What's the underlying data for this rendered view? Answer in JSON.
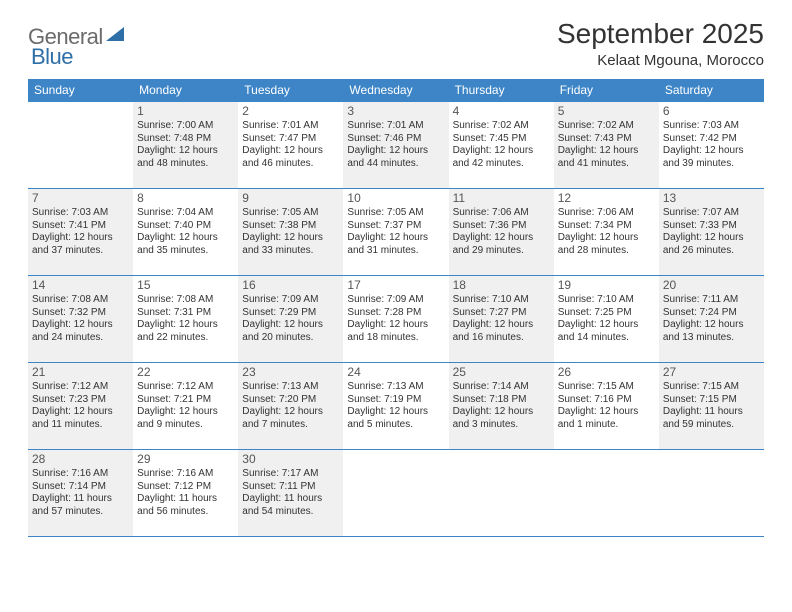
{
  "logo": {
    "text1": "General",
    "text2": "Blue"
  },
  "title": "September 2025",
  "subtitle": "Kelaat Mgouna, Morocco",
  "colors": {
    "header_bg": "#3d85c6",
    "header_fg": "#ffffff",
    "shaded_bg": "#f0f0f0",
    "page_bg": "#ffffff",
    "text": "#333333",
    "daynum": "#555555",
    "rule": "#3d85c6",
    "logo_gray": "#6b6b6b",
    "logo_blue": "#2f6fa8"
  },
  "day_headers": [
    "Sunday",
    "Monday",
    "Tuesday",
    "Wednesday",
    "Thursday",
    "Friday",
    "Saturday"
  ],
  "layout": {
    "columns": 7,
    "rows": 5,
    "row_pattern": "week-rows separated by header-colored rule; cells alternate white/shaded per week row start"
  },
  "weeks": [
    [
      {
        "day": "",
        "shaded": false,
        "sunrise": "",
        "sunset": "",
        "daylight1": "",
        "daylight2": ""
      },
      {
        "day": "1",
        "shaded": true,
        "sunrise": "Sunrise: 7:00 AM",
        "sunset": "Sunset: 7:48 PM",
        "daylight1": "Daylight: 12 hours",
        "daylight2": "and 48 minutes."
      },
      {
        "day": "2",
        "shaded": false,
        "sunrise": "Sunrise: 7:01 AM",
        "sunset": "Sunset: 7:47 PM",
        "daylight1": "Daylight: 12 hours",
        "daylight2": "and 46 minutes."
      },
      {
        "day": "3",
        "shaded": true,
        "sunrise": "Sunrise: 7:01 AM",
        "sunset": "Sunset: 7:46 PM",
        "daylight1": "Daylight: 12 hours",
        "daylight2": "and 44 minutes."
      },
      {
        "day": "4",
        "shaded": false,
        "sunrise": "Sunrise: 7:02 AM",
        "sunset": "Sunset: 7:45 PM",
        "daylight1": "Daylight: 12 hours",
        "daylight2": "and 42 minutes."
      },
      {
        "day": "5",
        "shaded": true,
        "sunrise": "Sunrise: 7:02 AM",
        "sunset": "Sunset: 7:43 PM",
        "daylight1": "Daylight: 12 hours",
        "daylight2": "and 41 minutes."
      },
      {
        "day": "6",
        "shaded": false,
        "sunrise": "Sunrise: 7:03 AM",
        "sunset": "Sunset: 7:42 PM",
        "daylight1": "Daylight: 12 hours",
        "daylight2": "and 39 minutes."
      }
    ],
    [
      {
        "day": "7",
        "shaded": true,
        "sunrise": "Sunrise: 7:03 AM",
        "sunset": "Sunset: 7:41 PM",
        "daylight1": "Daylight: 12 hours",
        "daylight2": "and 37 minutes."
      },
      {
        "day": "8",
        "shaded": false,
        "sunrise": "Sunrise: 7:04 AM",
        "sunset": "Sunset: 7:40 PM",
        "daylight1": "Daylight: 12 hours",
        "daylight2": "and 35 minutes."
      },
      {
        "day": "9",
        "shaded": true,
        "sunrise": "Sunrise: 7:05 AM",
        "sunset": "Sunset: 7:38 PM",
        "daylight1": "Daylight: 12 hours",
        "daylight2": "and 33 minutes."
      },
      {
        "day": "10",
        "shaded": false,
        "sunrise": "Sunrise: 7:05 AM",
        "sunset": "Sunset: 7:37 PM",
        "daylight1": "Daylight: 12 hours",
        "daylight2": "and 31 minutes."
      },
      {
        "day": "11",
        "shaded": true,
        "sunrise": "Sunrise: 7:06 AM",
        "sunset": "Sunset: 7:36 PM",
        "daylight1": "Daylight: 12 hours",
        "daylight2": "and 29 minutes."
      },
      {
        "day": "12",
        "shaded": false,
        "sunrise": "Sunrise: 7:06 AM",
        "sunset": "Sunset: 7:34 PM",
        "daylight1": "Daylight: 12 hours",
        "daylight2": "and 28 minutes."
      },
      {
        "day": "13",
        "shaded": true,
        "sunrise": "Sunrise: 7:07 AM",
        "sunset": "Sunset: 7:33 PM",
        "daylight1": "Daylight: 12 hours",
        "daylight2": "and 26 minutes."
      }
    ],
    [
      {
        "day": "14",
        "shaded": true,
        "sunrise": "Sunrise: 7:08 AM",
        "sunset": "Sunset: 7:32 PM",
        "daylight1": "Daylight: 12 hours",
        "daylight2": "and 24 minutes."
      },
      {
        "day": "15",
        "shaded": false,
        "sunrise": "Sunrise: 7:08 AM",
        "sunset": "Sunset: 7:31 PM",
        "daylight1": "Daylight: 12 hours",
        "daylight2": "and 22 minutes."
      },
      {
        "day": "16",
        "shaded": true,
        "sunrise": "Sunrise: 7:09 AM",
        "sunset": "Sunset: 7:29 PM",
        "daylight1": "Daylight: 12 hours",
        "daylight2": "and 20 minutes."
      },
      {
        "day": "17",
        "shaded": false,
        "sunrise": "Sunrise: 7:09 AM",
        "sunset": "Sunset: 7:28 PM",
        "daylight1": "Daylight: 12 hours",
        "daylight2": "and 18 minutes."
      },
      {
        "day": "18",
        "shaded": true,
        "sunrise": "Sunrise: 7:10 AM",
        "sunset": "Sunset: 7:27 PM",
        "daylight1": "Daylight: 12 hours",
        "daylight2": "and 16 minutes."
      },
      {
        "day": "19",
        "shaded": false,
        "sunrise": "Sunrise: 7:10 AM",
        "sunset": "Sunset: 7:25 PM",
        "daylight1": "Daylight: 12 hours",
        "daylight2": "and 14 minutes."
      },
      {
        "day": "20",
        "shaded": true,
        "sunrise": "Sunrise: 7:11 AM",
        "sunset": "Sunset: 7:24 PM",
        "daylight1": "Daylight: 12 hours",
        "daylight2": "and 13 minutes."
      }
    ],
    [
      {
        "day": "21",
        "shaded": true,
        "sunrise": "Sunrise: 7:12 AM",
        "sunset": "Sunset: 7:23 PM",
        "daylight1": "Daylight: 12 hours",
        "daylight2": "and 11 minutes."
      },
      {
        "day": "22",
        "shaded": false,
        "sunrise": "Sunrise: 7:12 AM",
        "sunset": "Sunset: 7:21 PM",
        "daylight1": "Daylight: 12 hours",
        "daylight2": "and 9 minutes."
      },
      {
        "day": "23",
        "shaded": true,
        "sunrise": "Sunrise: 7:13 AM",
        "sunset": "Sunset: 7:20 PM",
        "daylight1": "Daylight: 12 hours",
        "daylight2": "and 7 minutes."
      },
      {
        "day": "24",
        "shaded": false,
        "sunrise": "Sunrise: 7:13 AM",
        "sunset": "Sunset: 7:19 PM",
        "daylight1": "Daylight: 12 hours",
        "daylight2": "and 5 minutes."
      },
      {
        "day": "25",
        "shaded": true,
        "sunrise": "Sunrise: 7:14 AM",
        "sunset": "Sunset: 7:18 PM",
        "daylight1": "Daylight: 12 hours",
        "daylight2": "and 3 minutes."
      },
      {
        "day": "26",
        "shaded": false,
        "sunrise": "Sunrise: 7:15 AM",
        "sunset": "Sunset: 7:16 PM",
        "daylight1": "Daylight: 12 hours",
        "daylight2": "and 1 minute."
      },
      {
        "day": "27",
        "shaded": true,
        "sunrise": "Sunrise: 7:15 AM",
        "sunset": "Sunset: 7:15 PM",
        "daylight1": "Daylight: 11 hours",
        "daylight2": "and 59 minutes."
      }
    ],
    [
      {
        "day": "28",
        "shaded": true,
        "sunrise": "Sunrise: 7:16 AM",
        "sunset": "Sunset: 7:14 PM",
        "daylight1": "Daylight: 11 hours",
        "daylight2": "and 57 minutes."
      },
      {
        "day": "29",
        "shaded": false,
        "sunrise": "Sunrise: 7:16 AM",
        "sunset": "Sunset: 7:12 PM",
        "daylight1": "Daylight: 11 hours",
        "daylight2": "and 56 minutes."
      },
      {
        "day": "30",
        "shaded": true,
        "sunrise": "Sunrise: 7:17 AM",
        "sunset": "Sunset: 7:11 PM",
        "daylight1": "Daylight: 11 hours",
        "daylight2": "and 54 minutes."
      },
      {
        "day": "",
        "shaded": false,
        "sunrise": "",
        "sunset": "",
        "daylight1": "",
        "daylight2": ""
      },
      {
        "day": "",
        "shaded": false,
        "sunrise": "",
        "sunset": "",
        "daylight1": "",
        "daylight2": ""
      },
      {
        "day": "",
        "shaded": false,
        "sunrise": "",
        "sunset": "",
        "daylight1": "",
        "daylight2": ""
      },
      {
        "day": "",
        "shaded": false,
        "sunrise": "",
        "sunset": "",
        "daylight1": "",
        "daylight2": ""
      }
    ]
  ]
}
